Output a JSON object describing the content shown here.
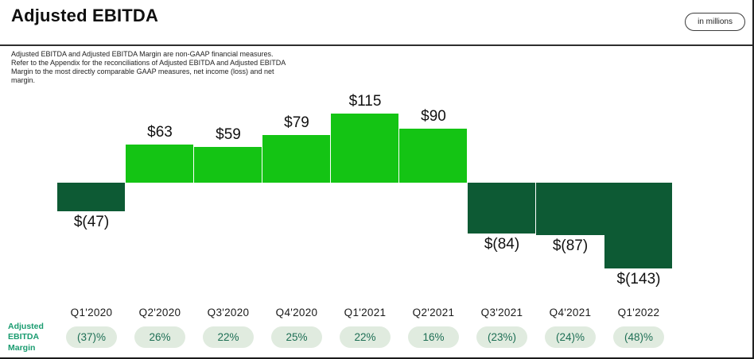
{
  "header": {
    "title": "Adjusted EBITDA",
    "unit_badge": "in millions"
  },
  "disclaimer": "Adjusted EBITDA and Adjusted EBITDA Margin are non-GAAP financial measures.\nRefer to the Appendix for the reconciliations of Adjusted EBITDA and Adjusted EBITDA\nMargin to the most directly comparable GAAP measures, net income (loss) and net\nmargin.",
  "margin_row": {
    "label": "Adjusted\nEBITDA\nMargin"
  },
  "chart_data": {
    "type": "bar",
    "title": "Adjusted EBITDA",
    "unit": "USD millions",
    "categories": [
      "Q1'2020",
      "Q2'2020",
      "Q3'2020",
      "Q4'2020",
      "Q1'2021",
      "Q2'2021",
      "Q3'2021",
      "Q4'2021",
      "Q1'2022"
    ],
    "values": [
      -47,
      63,
      59,
      79,
      115,
      90,
      -84,
      -87,
      -143
    ],
    "value_labels": [
      "$(47)",
      "$63",
      "$59",
      "$79",
      "$115",
      "$90",
      "$(84)",
      "$(87)",
      "$(143)"
    ],
    "margin_labels": [
      "(37)%",
      "26%",
      "22%",
      "25%",
      "22%",
      "16%",
      "(23%)",
      "(24)%",
      "(48)%"
    ],
    "ylim": [
      -150,
      120
    ],
    "grid": false,
    "y_axis_shown": false,
    "colors": {
      "positive_bar": "#14c414",
      "negative_bar": "#0d5a34",
      "pill_bg": "#e0ebdf",
      "pill_text": "#1e6f55",
      "margin_row_label": "#1a9c70"
    }
  }
}
